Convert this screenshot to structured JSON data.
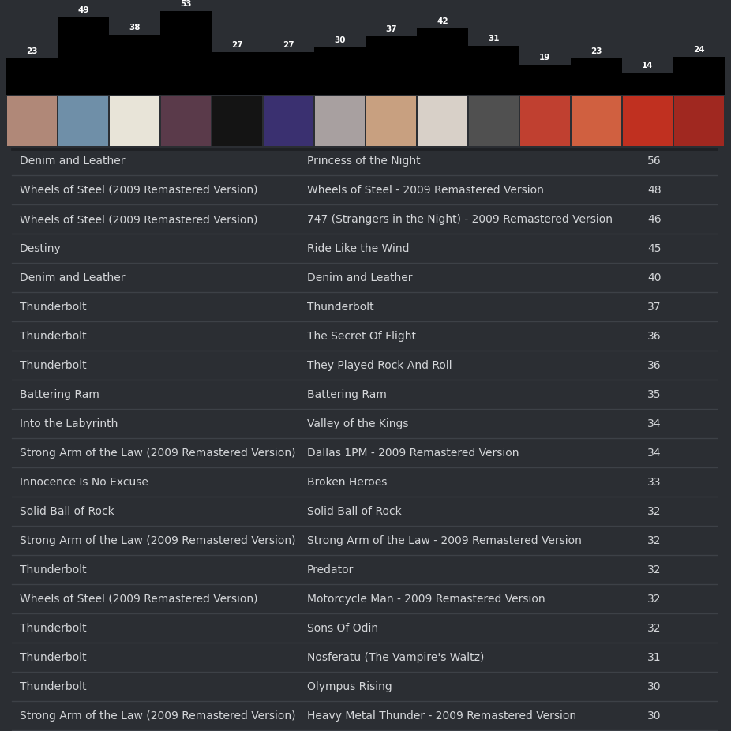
{
  "chart_data": {
    "type": "bar",
    "categories": [
      null,
      null,
      null,
      null,
      null,
      null,
      null,
      null,
      null,
      null,
      null,
      null,
      null,
      null
    ],
    "values": [
      23,
      49,
      38,
      53,
      27,
      27,
      30,
      37,
      42,
      31,
      19,
      23,
      14,
      24
    ],
    "ylim": [
      0,
      53
    ],
    "color": "#000000",
    "data_labels": true,
    "tick_labels": false
  },
  "table": {
    "rows": [
      [
        "Denim and Leather",
        "Princess of the Night",
        56
      ],
      [
        "Wheels of Steel (2009 Remastered Version)",
        "Wheels of Steel - 2009 Remastered Version",
        48
      ],
      [
        "Wheels of Steel (2009 Remastered Version)",
        "747 (Strangers in the Night) - 2009 Remastered Version",
        46
      ],
      [
        "Destiny",
        "Ride Like the Wind",
        45
      ],
      [
        "Denim and Leather",
        "Denim and Leather",
        40
      ],
      [
        "Thunderbolt",
        "Thunderbolt",
        37
      ],
      [
        "Thunderbolt",
        "The Secret Of Flight",
        36
      ],
      [
        "Thunderbolt",
        "They Played Rock And Roll",
        36
      ],
      [
        "Battering Ram",
        "Battering Ram",
        35
      ],
      [
        "Into the Labyrinth",
        "Valley of the Kings",
        34
      ],
      [
        "Strong Arm of the Law (2009 Remastered Version)",
        "Dallas 1PM - 2009 Remastered Version",
        34
      ],
      [
        "Innocence Is No Excuse",
        "Broken Heroes",
        33
      ],
      [
        "Solid Ball of Rock",
        "Solid Ball of Rock",
        32
      ],
      [
        "Strong Arm of the Law (2009 Remastered Version)",
        "Strong Arm of the Law - 2009 Remastered Version",
        32
      ],
      [
        "Thunderbolt",
        "Predator",
        32
      ],
      [
        "Wheels of Steel (2009 Remastered Version)",
        "Motorcycle Man - 2009 Remastered Version",
        32
      ],
      [
        "Thunderbolt",
        "Sons Of Odin",
        32
      ],
      [
        "Thunderbolt",
        "Nosferatu (The Vampire's Waltz)",
        31
      ],
      [
        "Thunderbolt",
        "Olympus Rising",
        30
      ],
      [
        "Strong Arm of the Law (2009 Remastered Version)",
        "Heavy Metal Thunder - 2009 Remastered Version",
        30
      ]
    ]
  }
}
